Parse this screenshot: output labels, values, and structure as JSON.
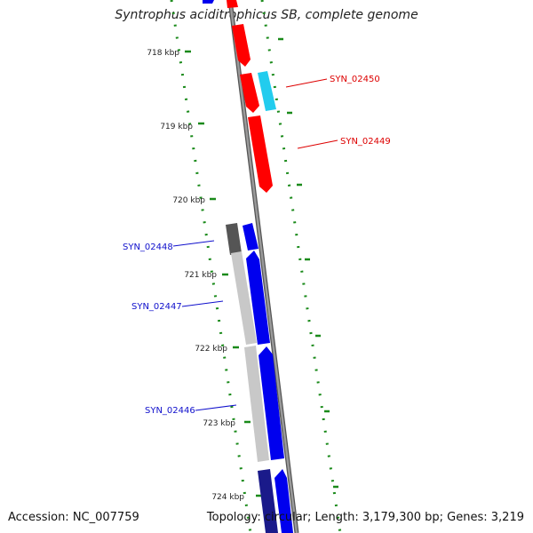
{
  "title": "Syntrophus aciditrophicus SB, complete genome",
  "footer": {
    "accession": "Accession: NC_007759",
    "summary": "Topology: circular; Length: 3,179,300 bp; Genes: 3,219"
  },
  "colors": {
    "forward_gene": "#0000ee",
    "reverse_gene": "#ff0000",
    "rna_gene": "#22ccee",
    "gene_product_bar": "#c8c8c8",
    "dark_feature": "#555555",
    "backbone": "#7a7a7a",
    "tick": "#1a8a1a",
    "forward_label": "#1010cc",
    "reverse_label": "#dd0000"
  },
  "ticks": [
    {
      "label": "718 kbp",
      "pos_kbp": 718
    },
    {
      "label": "719 kbp",
      "pos_kbp": 719
    },
    {
      "label": "720 kbp",
      "pos_kbp": 720
    },
    {
      "label": "721 kbp",
      "pos_kbp": 721
    },
    {
      "label": "722 kbp",
      "pos_kbp": 722
    },
    {
      "label": "723 kbp",
      "pos_kbp": 723
    },
    {
      "label": "724 kbp",
      "pos_kbp": 724
    }
  ],
  "gene_labels": [
    {
      "text": "SYN_02450",
      "strand": "reverse"
    },
    {
      "text": "SYN_02449",
      "strand": "reverse"
    },
    {
      "text": "SYN_02448",
      "strand": "forward"
    },
    {
      "text": "SYN_02447",
      "strand": "forward"
    },
    {
      "text": "SYN_02446",
      "strand": "forward"
    }
  ]
}
